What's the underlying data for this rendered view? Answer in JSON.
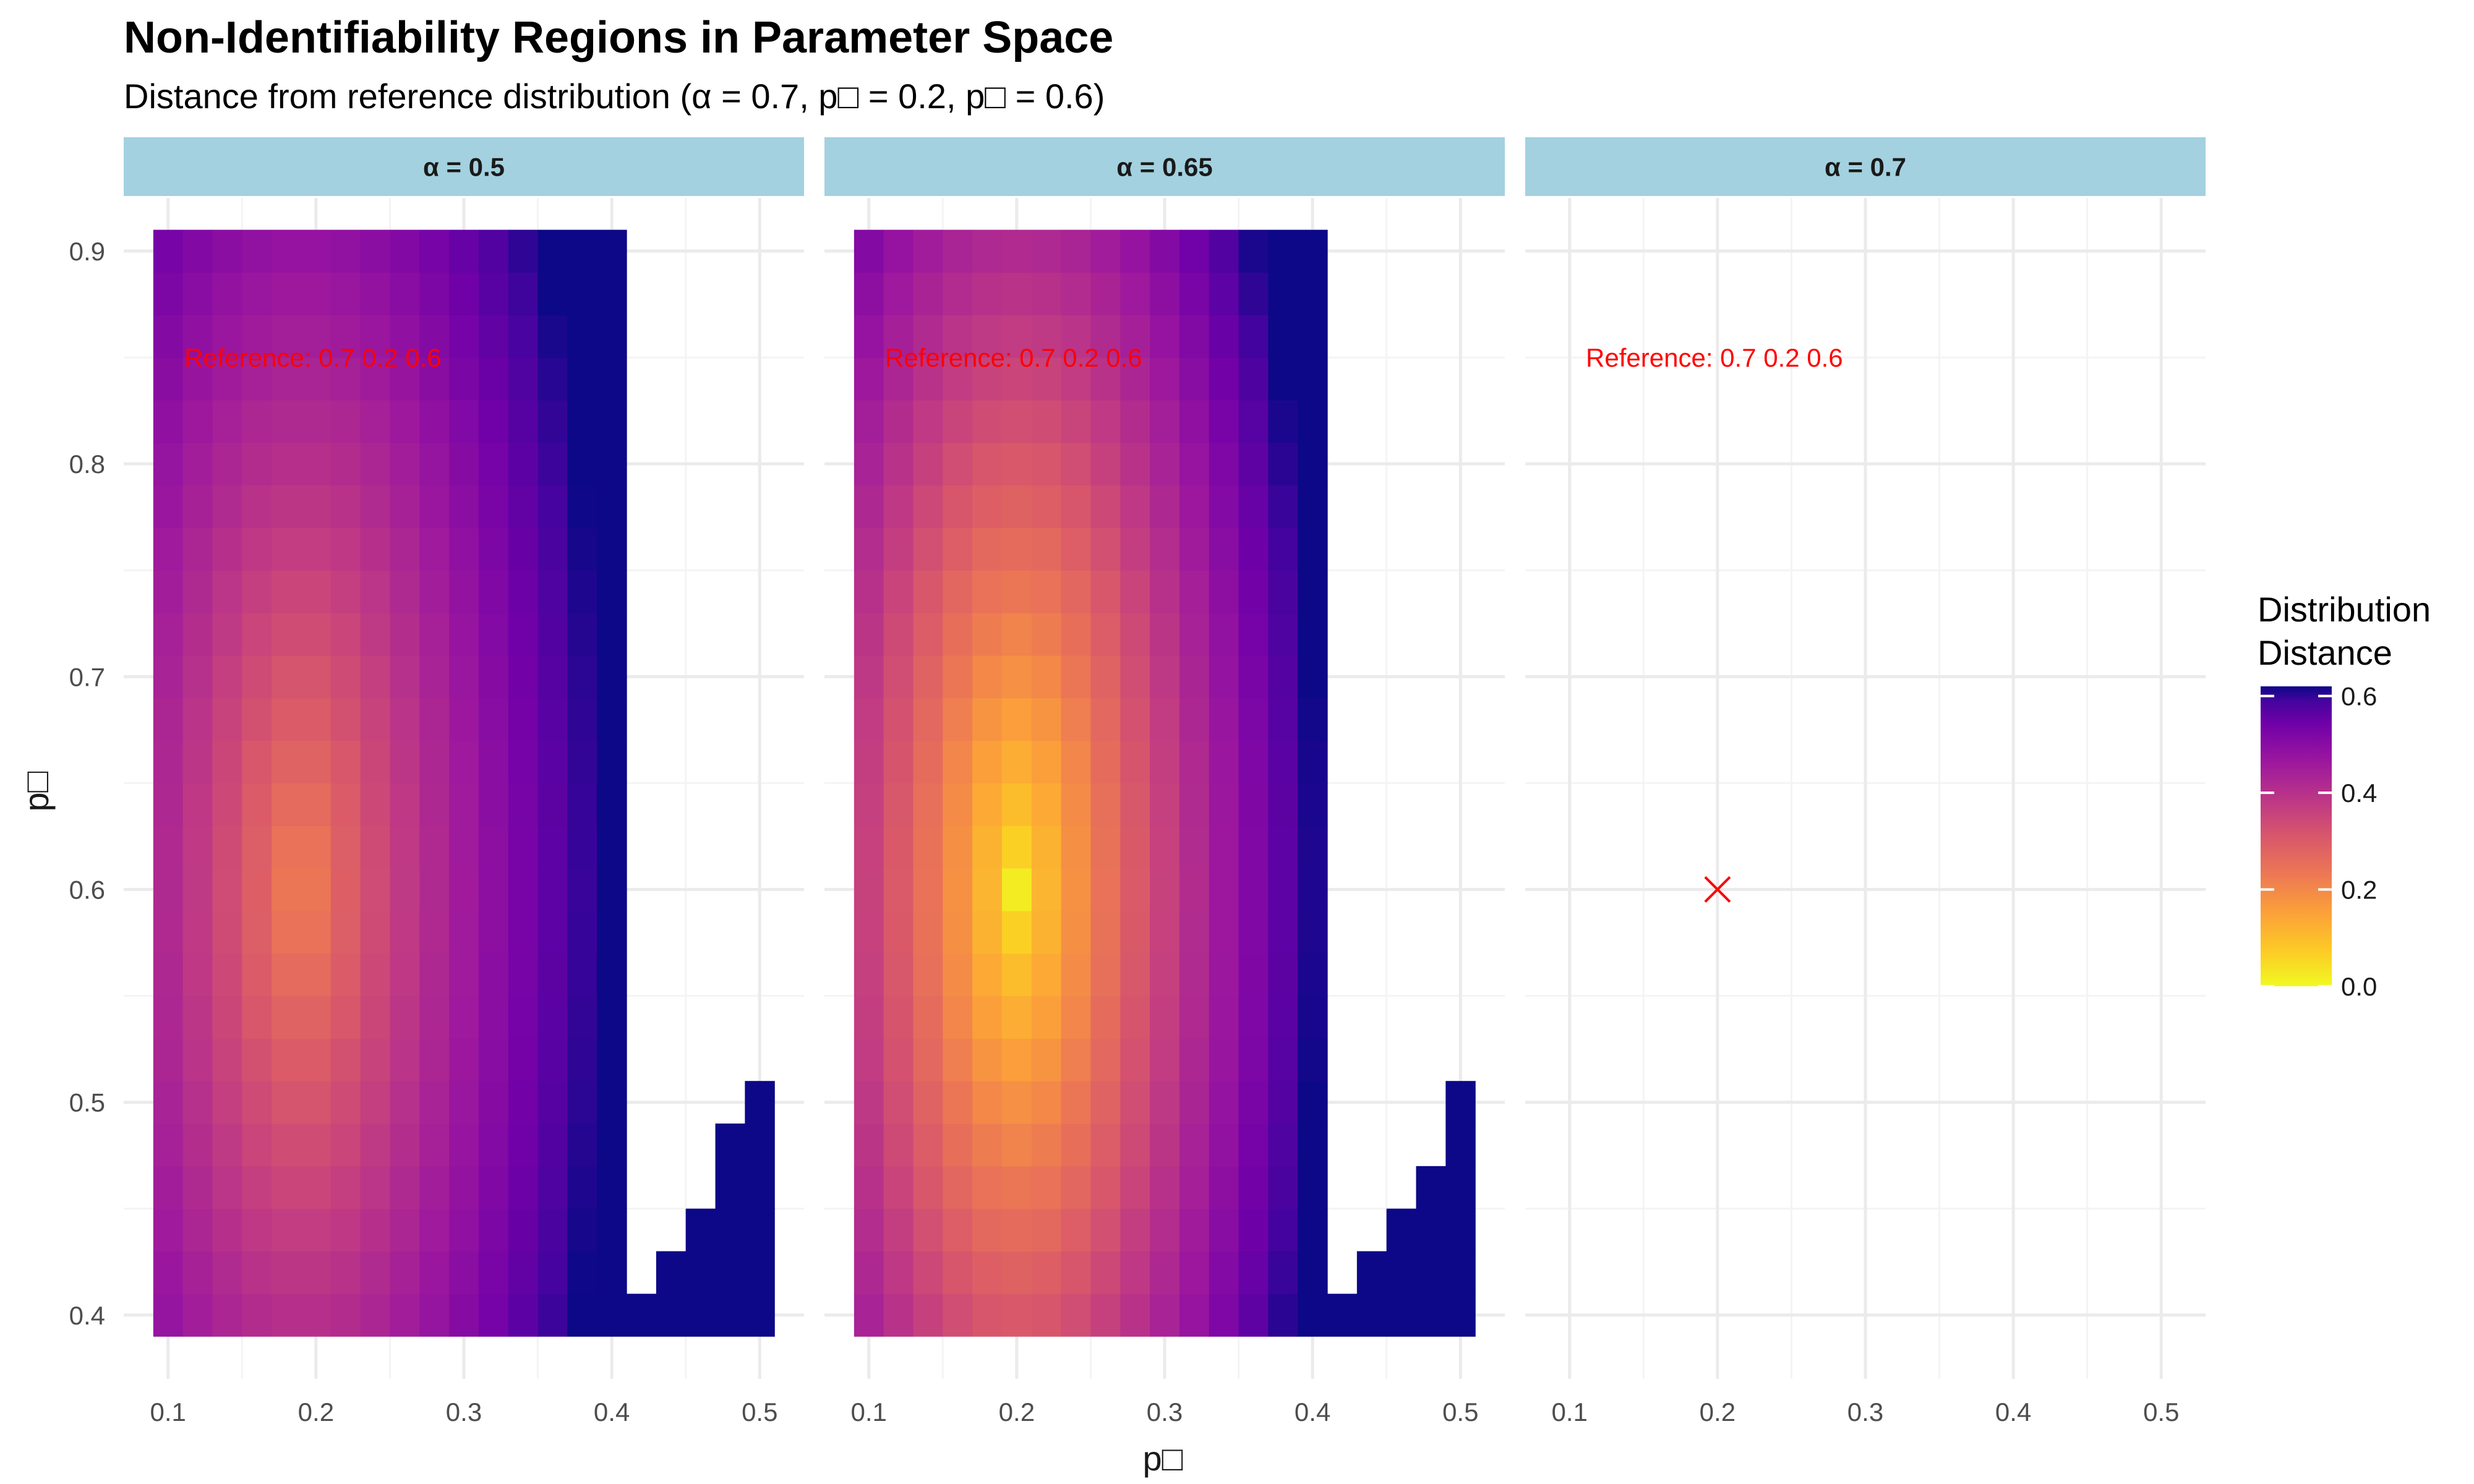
{
  "title": "Non-Identifiability Regions in Parameter Space",
  "subtitle": "Distance from reference distribution (α = 0.7, p□ = 0.2, p□ = 0.6)",
  "chart_data": {
    "type": "heatmap",
    "xlabel": "p□",
    "ylabel": "p□",
    "xlim": [
      0.07,
      0.53
    ],
    "ylim": [
      0.37,
      0.925
    ],
    "x_ticks": [
      "0.1",
      "0.2",
      "0.3",
      "0.4",
      "0.5"
    ],
    "y_ticks": [
      "0.4",
      "0.5",
      "0.6",
      "0.7",
      "0.8",
      "0.9"
    ],
    "x_tick_values": [
      0.1,
      0.2,
      0.3,
      0.4,
      0.5
    ],
    "y_tick_values": [
      0.4,
      0.5,
      0.6,
      0.7,
      0.8,
      0.9
    ],
    "grid": true,
    "grid_step_x": 0.02,
    "grid_step_y": 0.02,
    "x_range": [
      0.1,
      0.5
    ],
    "y_range": [
      0.4,
      0.9
    ],
    "fill_scale": {
      "name": "plasma (reversed)",
      "limits": [
        0,
        0.62
      ],
      "low_color": "#f0f921",
      "high_color": "#0d0887"
    },
    "legend": {
      "title_line1": "Distribution",
      "title_line2": "Distance",
      "ticks": [
        "0.0",
        "0.2",
        "0.4",
        "0.6"
      ],
      "tick_values": [
        0.0,
        0.2,
        0.4,
        0.6
      ],
      "placement": "right"
    },
    "reference": {
      "alpha": 0.7,
      "x": 0.2,
      "y": 0.6
    },
    "facets": [
      {
        "label": "α = 0.5",
        "alpha": 0.5,
        "annotation": "Reference: 0.7 0.2 0.6",
        "center_x": 0.19,
        "center_y": 0.6,
        "min_dist": 0.2,
        "boundary": [
          {
            "x": 0.42,
            "y_max": 0.41
          },
          {
            "x": 0.44,
            "y_max": 0.43
          },
          {
            "x": 0.46,
            "y_max": 0.45
          },
          {
            "x": 0.48,
            "y_max": 0.49
          },
          {
            "x": 0.5,
            "y_max": 0.5
          }
        ],
        "show_cells": true,
        "show_reference_marker": false
      },
      {
        "label": "α = 0.65",
        "alpha": 0.65,
        "annotation": "Reference: 0.7 0.2 0.6",
        "center_x": 0.2,
        "center_y": 0.6,
        "min_dist": 0.02,
        "boundary": [
          {
            "x": 0.42,
            "y_max": 0.41
          },
          {
            "x": 0.44,
            "y_max": 0.43
          },
          {
            "x": 0.46,
            "y_max": 0.45
          },
          {
            "x": 0.48,
            "y_max": 0.47
          },
          {
            "x": 0.5,
            "y_max": 0.5
          }
        ],
        "show_cells": true,
        "show_reference_marker": false
      },
      {
        "label": "α = 0.7",
        "alpha": 0.7,
        "annotation": "Reference: 0.7 0.2 0.6",
        "show_cells": false,
        "show_reference_marker": true
      }
    ],
    "colors": {
      "strip_fill": "#a3d1e0",
      "grid_major": "#ebebeb",
      "grid_minor": "#f4f4f4",
      "annotation": "#ff0000",
      "marker": "#ff0000"
    }
  }
}
